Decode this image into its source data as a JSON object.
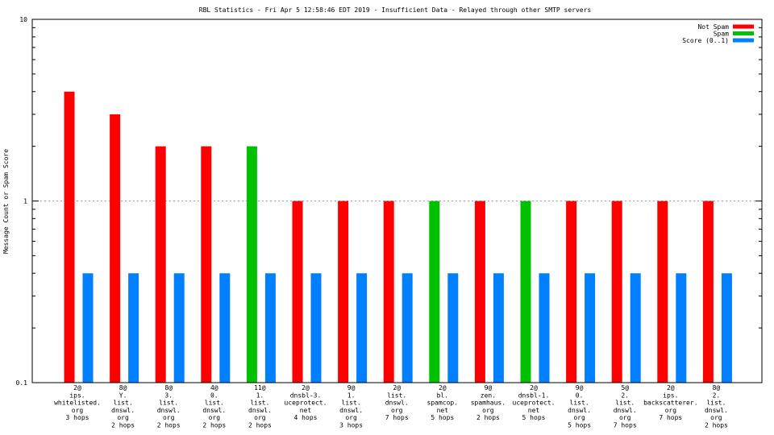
{
  "chart_data": {
    "type": "bar",
    "title": "RBL Statistics - Fri Apr  5 12:58:46 EDT 2019 - Insufficient Data - Relayed through other SMTP servers",
    "ylabel": "Message Count or Spam Score",
    "xlabel": "",
    "yscale": "log",
    "ylim": [
      0.1,
      10
    ],
    "yticks": [
      "0.1",
      "1",
      "10"
    ],
    "grid": true,
    "legend_position": "top-right",
    "categories": [
      [
        "2@",
        "ips.",
        "whitelisted.",
        "org",
        "3 hops"
      ],
      [
        "8@",
        "Y.",
        "list.",
        "dnswl.",
        "org",
        "2 hops"
      ],
      [
        "8@",
        "3.",
        "list.",
        "dnswl.",
        "org",
        "2 hops"
      ],
      [
        "4@",
        "0.",
        "list.",
        "dnswl.",
        "org",
        "2 hops"
      ],
      [
        "11@",
        "1.",
        "list.",
        "dnswl.",
        "org",
        "2 hops"
      ],
      [
        "2@",
        "dnsbl-3.",
        "uceprotect.",
        "net",
        "4 hops"
      ],
      [
        "9@",
        "1.",
        "list.",
        "dnswl.",
        "org",
        "3 hops"
      ],
      [
        "2@",
        "list.",
        "dnswl.",
        "org",
        "7 hops"
      ],
      [
        "2@",
        "bl.",
        "spamcop.",
        "net",
        "5 hops"
      ],
      [
        "9@",
        "zen.",
        "spamhaus.",
        "org",
        "2 hops"
      ],
      [
        "2@",
        "dnsbl-1.",
        "uceprotect.",
        "net",
        "5 hops"
      ],
      [
        "9@",
        "0.",
        "list.",
        "dnswl.",
        "org",
        "5 hops"
      ],
      [
        "5@",
        "2.",
        "list.",
        "dnswl.",
        "org",
        "7 hops"
      ],
      [
        "2@",
        "ips.",
        "backscatterer.",
        "org",
        "7 hops"
      ],
      [
        "8@",
        "2.",
        "list.",
        "dnswl.",
        "org",
        "2 hops"
      ]
    ],
    "series": [
      {
        "name": "Not Spam",
        "color": "#ff0000",
        "values": [
          4,
          3,
          2,
          2,
          null,
          1,
          1,
          1,
          null,
          1,
          null,
          1,
          1,
          1,
          1
        ]
      },
      {
        "name": "Spam",
        "color": "#00c000",
        "values": [
          null,
          null,
          null,
          null,
          2,
          null,
          null,
          null,
          1,
          null,
          1,
          null,
          null,
          null,
          null
        ]
      },
      {
        "name": "Score (0..1)",
        "color": "#0080ff",
        "values": [
          0.4,
          0.4,
          0.4,
          0.4,
          0.4,
          0.4,
          0.4,
          0.4,
          0.4,
          0.4,
          0.4,
          0.4,
          0.4,
          0.4,
          0.4
        ]
      }
    ]
  }
}
